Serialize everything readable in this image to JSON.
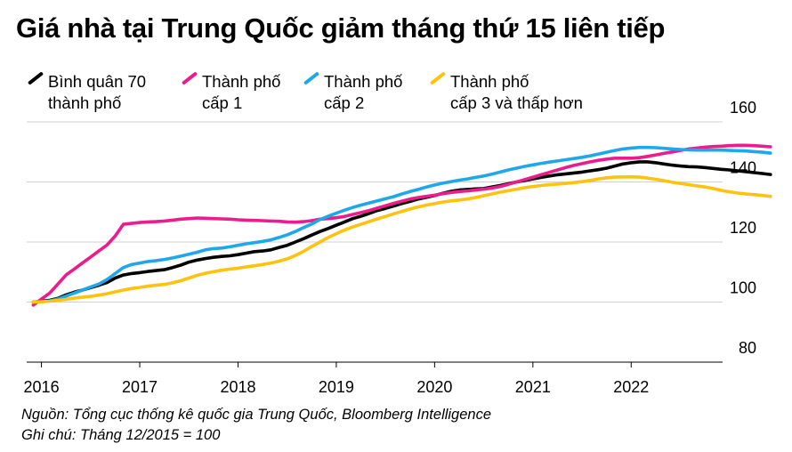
{
  "title": "Giá nhà tại Trung Quốc giảm tháng thứ 15 liên tiếp",
  "notes": {
    "source": "Nguồn: Tổng cục thống kê quốc gia Trung Quốc, Bloomberg Intelligence",
    "footnote": "Ghi chú: Tháng 12/2015 = 100"
  },
  "legend": [
    {
      "label": "Bình quân 70\nthành phố",
      "color": "#000000"
    },
    {
      "label": "Thành phố\ncấp 1",
      "color": "#ec1c8c"
    },
    {
      "label": "Thành phố\ncấp 2",
      "color": "#1ea8ea"
    },
    {
      "label": "Thành phố\ncấp 3 và thấp hơn",
      "color": "#ffc20e"
    }
  ],
  "chart_data": {
    "type": "line",
    "title": "Giá nhà tại Trung Quốc giảm tháng thứ 15 liên tiếp",
    "xlabel": "",
    "ylabel": "",
    "x_start": 2015.917,
    "x_step": 0.083333,
    "xlim": [
      2015.85,
      2022.93
    ],
    "ylim": [
      80,
      160
    ],
    "x_ticks": [
      2016,
      2017,
      2018,
      2019,
      2020,
      2021,
      2022
    ],
    "x_tick_labels": [
      "2016",
      "2017",
      "2018",
      "2019",
      "2020",
      "2021",
      "2022"
    ],
    "y_ticks": [
      80,
      100,
      120,
      140,
      160
    ],
    "y_tick_labels": [
      "80",
      "100",
      "120",
      "140",
      "160"
    ],
    "grid": true,
    "series": [
      {
        "name": "Bình quân 70 thành phố",
        "color": "#000000",
        "values": [
          100,
          100.3,
          100.6,
          101.2,
          102.4,
          103.3,
          104.0,
          104.8,
          105.6,
          106.5,
          108.0,
          109.0,
          109.5,
          109.8,
          110.2,
          110.5,
          110.8,
          111.5,
          112.3,
          113.3,
          114.0,
          114.5,
          114.9,
          115.2,
          115.4,
          115.8,
          116.3,
          116.8,
          117.0,
          117.4,
          118.2,
          118.9,
          120.0,
          121.1,
          122.3,
          123.5,
          124.5,
          125.6,
          126.7,
          127.8,
          128.6,
          129.5,
          130.5,
          131.2,
          132.0,
          132.8,
          133.5,
          134.3,
          134.9,
          135.5,
          136.2,
          136.9,
          137.3,
          137.5,
          137.7,
          137.8,
          138.3,
          138.8,
          139.4,
          140.0,
          140.5,
          141.0,
          141.5,
          142.0,
          142.4,
          142.7,
          143.0,
          143.3,
          143.7,
          144.1,
          144.6,
          145.3,
          146.0,
          146.4,
          146.7,
          146.7,
          146.4,
          146.0,
          145.6,
          145.3,
          145.1,
          145.0,
          144.8,
          144.5,
          144.2,
          144.0,
          143.7,
          143.4,
          143.1,
          142.8,
          142.5
        ]
      },
      {
        "name": "Thành phố cấp 1",
        "color": "#ec1c8c",
        "values": [
          99,
          101,
          103,
          106,
          109,
          111,
          113,
          115,
          117,
          119,
          122,
          125.9,
          126.2,
          126.5,
          126.7,
          126.8,
          127.0,
          127.3,
          127.6,
          127.8,
          128.0,
          127.9,
          127.8,
          127.7,
          127.6,
          127.4,
          127.3,
          127.2,
          127.1,
          127.0,
          126.9,
          126.7,
          126.6,
          126.8,
          127.1,
          127.6,
          127.8,
          128.1,
          128.5,
          129.2,
          129.8,
          130.5,
          131.3,
          132.1,
          132.9,
          133.6,
          134.3,
          134.8,
          135.2,
          135.6,
          136.1,
          136.5,
          136.8,
          137.0,
          137.3,
          137.6,
          138.0,
          138.5,
          139.2,
          140.0,
          140.8,
          141.6,
          142.4,
          143.2,
          144.0,
          144.8,
          145.5,
          146.1,
          146.7,
          147.2,
          147.6,
          147.9,
          147.9,
          147.9,
          148.1,
          148.5,
          149.0,
          149.5,
          150.0,
          150.5,
          151.0,
          151.3,
          151.6,
          151.8,
          151.9,
          152.1,
          152.2,
          152.2,
          152.1,
          151.9,
          151.7
        ]
      },
      {
        "name": "Thành phố cấp 2",
        "color": "#1ea8ea",
        "values": [
          100,
          100.1,
          100.4,
          101.0,
          102.0,
          103.0,
          104.0,
          105.0,
          106.0,
          107.5,
          109.5,
          111.5,
          112.5,
          113.0,
          113.5,
          113.8,
          114.2,
          114.7,
          115.3,
          115.9,
          116.6,
          117.4,
          117.8,
          118.0,
          118.4,
          118.9,
          119.4,
          119.8,
          120.2,
          120.7,
          121.5,
          122.4,
          123.5,
          124.8,
          126.0,
          127.5,
          128.6,
          129.6,
          130.6,
          131.5,
          132.3,
          133.0,
          133.7,
          134.4,
          135.1,
          136.0,
          136.8,
          137.5,
          138.3,
          139.0,
          139.6,
          140.1,
          140.6,
          141.0,
          141.5,
          142.0,
          142.6,
          143.3,
          144.0,
          144.6,
          145.2,
          145.7,
          146.2,
          146.6,
          147.0,
          147.4,
          147.8,
          148.2,
          148.7,
          149.3,
          149.9,
          150.5,
          151.0,
          151.3,
          151.5,
          151.5,
          151.4,
          151.2,
          151.0,
          150.8,
          150.7,
          150.6,
          150.6,
          150.6,
          150.6,
          150.5,
          150.4,
          150.3,
          150.1,
          149.9,
          149.6
        ]
      },
      {
        "name": "Thành phố cấp 3 và thấp hơn",
        "color": "#ffc20e",
        "values": [
          100,
          100.1,
          100.3,
          100.6,
          100.9,
          101.3,
          101.6,
          101.9,
          102.3,
          102.8,
          103.4,
          104.0,
          104.5,
          104.9,
          105.3,
          105.6,
          105.9,
          106.4,
          107.1,
          108.0,
          108.9,
          109.6,
          110.1,
          110.6,
          111.0,
          111.3,
          111.7,
          112.1,
          112.5,
          113.0,
          113.6,
          114.4,
          115.5,
          116.9,
          118.5,
          120.0,
          121.5,
          122.8,
          124.0,
          125.0,
          125.9,
          126.8,
          127.7,
          128.5,
          129.4,
          130.2,
          131.0,
          131.7,
          132.3,
          132.8,
          133.3,
          133.7,
          134.0,
          134.3,
          134.8,
          135.4,
          136.0,
          136.6,
          137.1,
          137.6,
          138.1,
          138.5,
          138.8,
          139.1,
          139.3,
          139.5,
          139.8,
          140.1,
          140.5,
          141.0,
          141.4,
          141.6,
          141.7,
          141.7,
          141.6,
          141.3,
          140.9,
          140.4,
          139.9,
          139.5,
          139.1,
          138.7,
          138.3,
          137.8,
          137.2,
          136.7,
          136.3,
          136.0,
          135.8,
          135.5,
          135.2
        ]
      }
    ]
  }
}
